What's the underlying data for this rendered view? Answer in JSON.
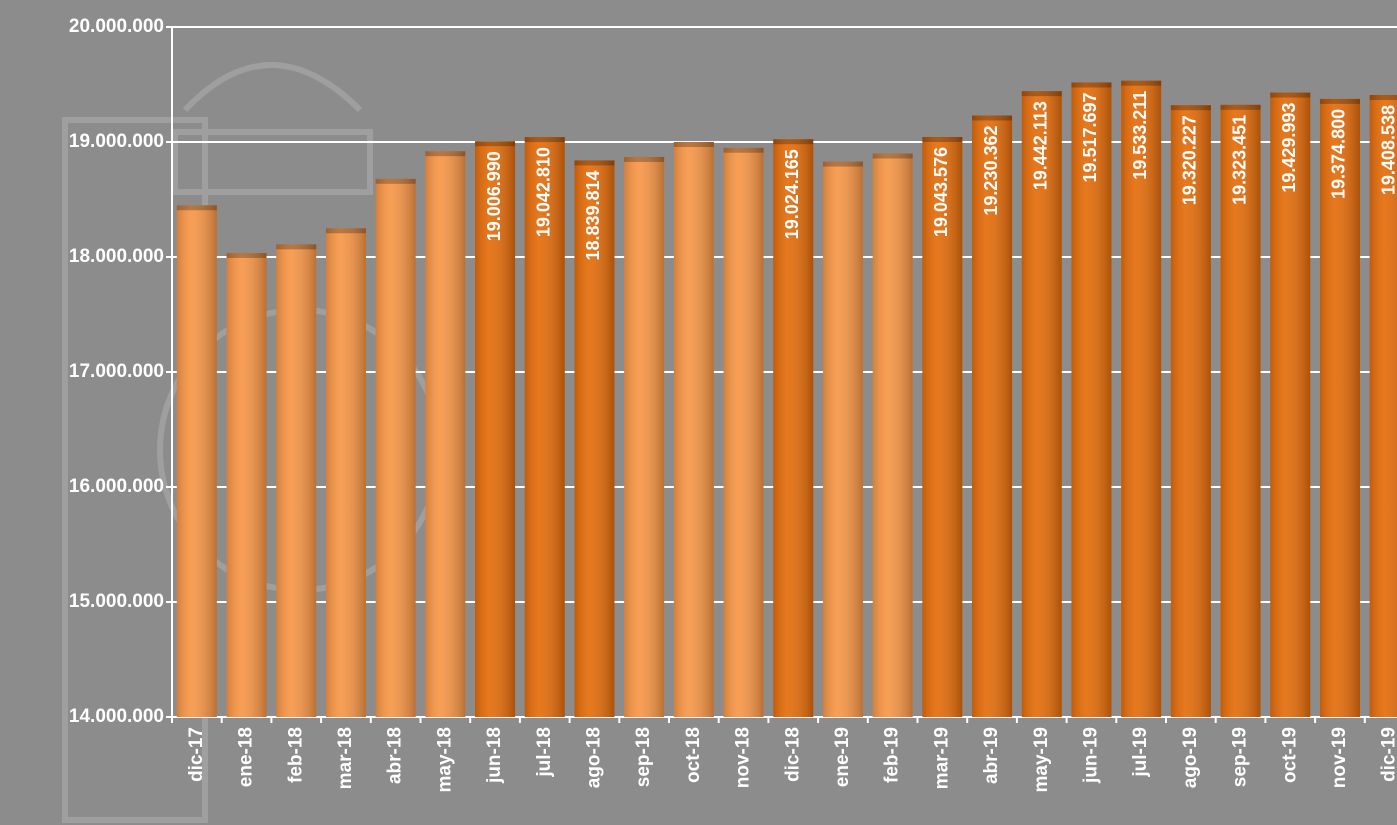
{
  "chart_data": {
    "type": "bar",
    "categories": [
      "dic-17",
      "ene-18",
      "feb-18",
      "mar-18",
      "abr-18",
      "may-18",
      "jun-18",
      "jul-18",
      "ago-18",
      "sep-18",
      "oct-18",
      "nov-18",
      "dic-18",
      "ene-19",
      "feb-19",
      "mar-19",
      "abr-19",
      "may-19",
      "jun-19",
      "jul-19",
      "ago-19",
      "sep-19",
      "oct-19",
      "nov-19",
      "dic-19"
    ],
    "values": [
      18450000,
      18035000,
      18110000,
      18250000,
      18680000,
      18920000,
      19006990,
      19042810,
      18839814,
      18870000,
      19000000,
      18950000,
      19024165,
      18830000,
      18900000,
      19043576,
      19230362,
      19442113,
      19517697,
      19533211,
      19320227,
      19323451,
      19429993,
      19374800,
      19408538
    ],
    "value_labels": [
      null,
      null,
      null,
      null,
      null,
      null,
      "19.006.990",
      "19.042.810",
      "18.839.814",
      null,
      null,
      null,
      "19.024.165",
      null,
      null,
      "19.043.576",
      "19.230.362",
      "19.442.113",
      "19.517.697",
      "19.533.211",
      "19.320.227",
      "19.323.451",
      "19.429.993",
      "19.374.800",
      "19.408.538"
    ],
    "colors": [
      "#f79646",
      "#f79646",
      "#f79646",
      "#f79646",
      "#f79646",
      "#f79646",
      "#e46c0a",
      "#e46c0a",
      "#e46c0a",
      "#f79646",
      "#f79646",
      "#f79646",
      "#e46c0a",
      "#f79646",
      "#f79646",
      "#e46c0a",
      "#e46c0a",
      "#e46c0a",
      "#e46c0a",
      "#e46c0a",
      "#e46c0a",
      "#e46c0a",
      "#e46c0a",
      "#e46c0a",
      "#e46c0a"
    ],
    "ylim": [
      14000000,
      20000000
    ],
    "yticks": [
      {
        "value": 14000000,
        "label": "14.000.000"
      },
      {
        "value": 15000000,
        "label": "15.000.000"
      },
      {
        "value": 16000000,
        "label": "16.000.000"
      },
      {
        "value": 17000000,
        "label": "17.000.000"
      },
      {
        "value": 18000000,
        "label": "18.000.000"
      },
      {
        "value": 19000000,
        "label": "19.000.000"
      },
      {
        "value": 20000000,
        "label": "20.000.000"
      }
    ],
    "grid": true
  }
}
